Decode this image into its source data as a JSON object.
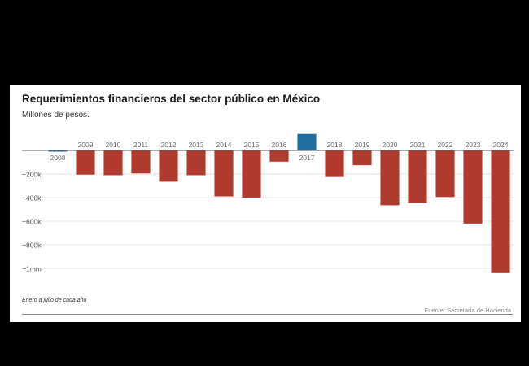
{
  "chart_data": {
    "type": "bar",
    "title": "Requerimientos financieros del sector público en México",
    "subtitle": "Millones de pesos.",
    "categories": [
      "2008",
      "2009",
      "2010",
      "2011",
      "2012",
      "2013",
      "2014",
      "2015",
      "2016",
      "2017",
      "2018",
      "2019",
      "2020",
      "2021",
      "2022",
      "2023",
      "2024"
    ],
    "values": [
      -10000,
      -205000,
      -210000,
      -195000,
      -265000,
      -210000,
      -390000,
      -400000,
      -95000,
      140000,
      -225000,
      -125000,
      -465000,
      -445000,
      -395000,
      -620000,
      -1040000
    ],
    "ylim": [
      -1100000,
      150000
    ],
    "yticks": [
      {
        "value": -200000,
        "label": "−200k"
      },
      {
        "value": -400000,
        "label": "−400k"
      },
      {
        "value": -600000,
        "label": "−600k"
      },
      {
        "value": -800000,
        "label": "−800k"
      },
      {
        "value": -1000000,
        "label": "−1mm"
      }
    ],
    "grid": true,
    "colors": {
      "positive": "#1f6fa3",
      "negative": "#b03a2e"
    },
    "footnote": "Enero a julio de cada año",
    "source": "Fuente: Secretaría de Hacienda"
  }
}
